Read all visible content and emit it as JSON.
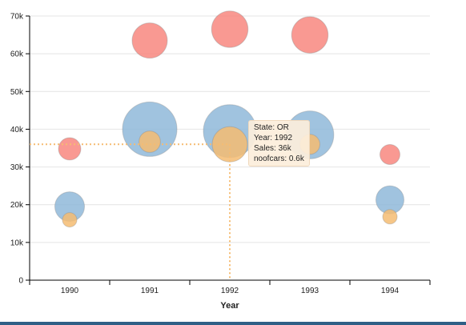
{
  "chart_data": {
    "type": "scatter",
    "subtype": "bubble",
    "xlabel": "Year",
    "ylabel": "",
    "categories": [
      "1990",
      "1991",
      "1992",
      "1993",
      "1994"
    ],
    "ylim": [
      0,
      70000
    ],
    "yticks": [
      0,
      10000,
      20000,
      30000,
      40000,
      50000,
      60000,
      70000
    ],
    "ytick_labels": [
      "0",
      "10k",
      "20k",
      "30k",
      "40k",
      "50k",
      "60k",
      "70k"
    ],
    "grid": "horizontal",
    "series": [
      {
        "color": "#8fb8d9",
        "points": [
          {
            "year": "1990",
            "sales": 19500,
            "noofcars": 0.4
          },
          {
            "year": "1991",
            "sales": 40000,
            "noofcars": 1.6
          },
          {
            "year": "1992",
            "sales": 39500,
            "noofcars": 1.5
          },
          {
            "year": "1993",
            "sales": 38500,
            "noofcars": 1.2
          },
          {
            "year": "1994",
            "sales": 21300,
            "noofcars": 0.35
          }
        ]
      },
      {
        "color": "#f8877f",
        "points": [
          {
            "year": "1990",
            "sales": 34800,
            "noofcars": 0.2
          },
          {
            "year": "1991",
            "sales": 63500,
            "noofcars": 0.6
          },
          {
            "year": "1992",
            "sales": 66500,
            "noofcars": 0.65
          },
          {
            "year": "1993",
            "sales": 65000,
            "noofcars": 0.65
          },
          {
            "year": "1994",
            "sales": 33300,
            "noofcars": 0.15
          }
        ]
      },
      {
        "color": "#f5bc72",
        "points": [
          {
            "year": "1990",
            "sales": 16000,
            "noofcars": 0.06
          },
          {
            "year": "1991",
            "sales": 36700,
            "noofcars": 0.18
          },
          {
            "year": "1992",
            "sales": 36000,
            "noofcars": 0.6
          },
          {
            "year": "1993",
            "sales": 36000,
            "noofcars": 0.15
          },
          {
            "year": "1994",
            "sales": 16800,
            "noofcars": 0.06
          }
        ]
      }
    ],
    "crosshair": {
      "year": "1992",
      "sales": 36000,
      "color": "#f5bc72"
    },
    "tooltip": {
      "state": "State: OR",
      "year": "Year: 1992",
      "sales": "Sales: 36k",
      "noofcars": "noofcars: 0.6k"
    }
  }
}
